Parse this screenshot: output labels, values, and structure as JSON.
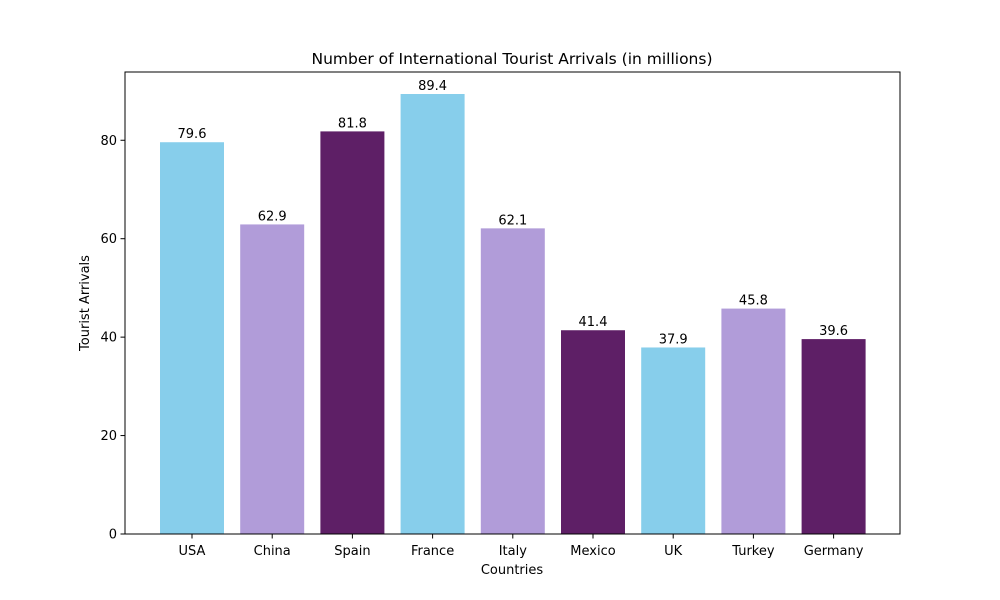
{
  "chart_data": {
    "type": "bar",
    "title": "Number of International Tourist Arrivals (in millions)",
    "xlabel": "Countries",
    "ylabel": "Tourist Arrivals",
    "categories": [
      "USA",
      "China",
      "Spain",
      "France",
      "Italy",
      "Mexico",
      "UK",
      "Turkey",
      "Germany"
    ],
    "values": [
      79.6,
      62.9,
      81.8,
      89.4,
      62.1,
      41.4,
      37.9,
      45.8,
      39.6
    ],
    "value_labels": [
      "79.6",
      "62.9",
      "81.8",
      "89.4",
      "62.1",
      "41.4",
      "37.9",
      "45.8",
      "39.6"
    ],
    "bar_colors": [
      "#87ceeb",
      "#b19cd9",
      "#5e1f66",
      "#87ceeb",
      "#b19cd9",
      "#5e1f66",
      "#87ceeb",
      "#b19cd9",
      "#5e1f66"
    ],
    "ylim": [
      0,
      93.87
    ],
    "yticks": [
      0,
      20,
      40,
      60,
      80
    ],
    "ytick_labels": [
      "0",
      "20",
      "40",
      "60",
      "80"
    ],
    "grid": false,
    "legend": "none"
  }
}
